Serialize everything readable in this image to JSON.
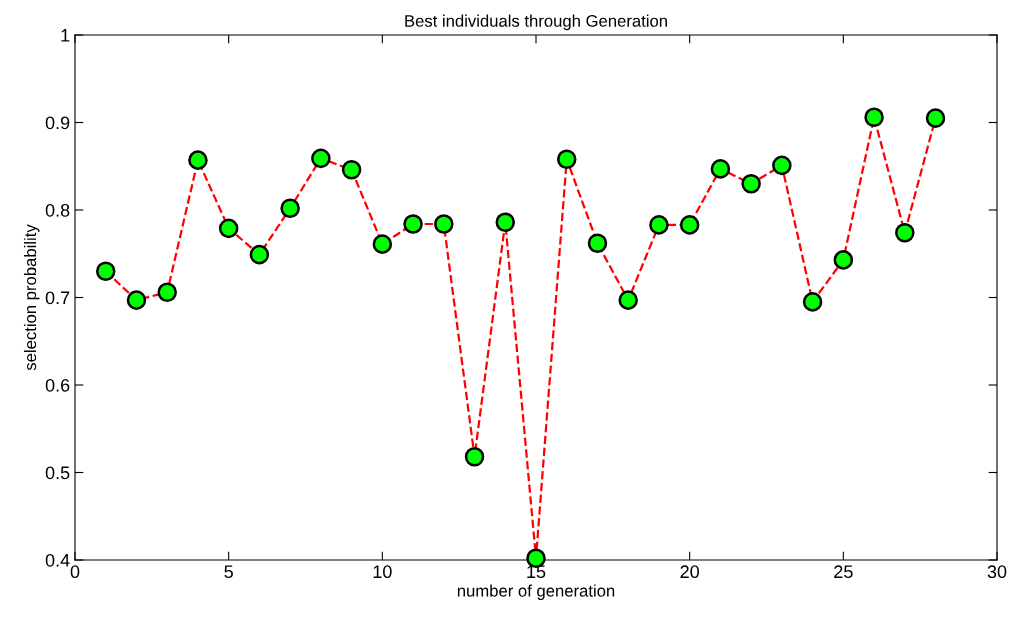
{
  "chart_data": {
    "type": "line",
    "title": "Best individuals through Generation",
    "xlabel": "number of generation",
    "ylabel": "selection probability",
    "x": [
      1,
      2,
      3,
      4,
      5,
      6,
      7,
      8,
      9,
      10,
      11,
      12,
      13,
      14,
      15,
      16,
      17,
      18,
      19,
      20,
      21,
      22,
      23,
      24,
      25,
      26,
      27,
      28
    ],
    "series": [
      {
        "color": "#ff0000",
        "colors": [
          "#00ff00",
          "#00ff00",
          "#00ff00",
          "#00ff00",
          "#00ff00",
          "#00ff00",
          "#00ff00",
          "#00ff00",
          "#00ff00",
          "#00ff00",
          "#00ff00",
          "#00ff00",
          "#00ff00",
          "#00ff00",
          "#00ff00",
          "#00ff00",
          "#00ff00",
          "#00ff00",
          "#00ff00",
          "#00ff00",
          "#00ff00",
          "#00ff00",
          "#00ff00",
          "#00ff00",
          "#00ff00",
          "#00ff00",
          "#00ff00",
          "#00ff00"
        ],
        "values": [
          0.73,
          0.697,
          0.706,
          0.857,
          0.779,
          0.749,
          0.802,
          0.859,
          0.846,
          0.761,
          0.784,
          0.784,
          0.518,
          0.786,
          0.402,
          0.858,
          0.762,
          0.697,
          0.783,
          0.783,
          0.847,
          0.83,
          0.851,
          0.695,
          0.743,
          0.906,
          0.774,
          0.905
        ]
      }
    ],
    "xlim": [
      0,
      30
    ],
    "xticks": [
      0,
      5,
      10,
      15,
      20,
      25,
      30
    ],
    "ylim": [
      0.4,
      1
    ],
    "yticks": [
      0.4,
      0.5,
      0.6,
      0.7,
      0.8,
      0.9,
      1
    ],
    "marker": "circle",
    "line_style": "dashed",
    "grid": false
  }
}
